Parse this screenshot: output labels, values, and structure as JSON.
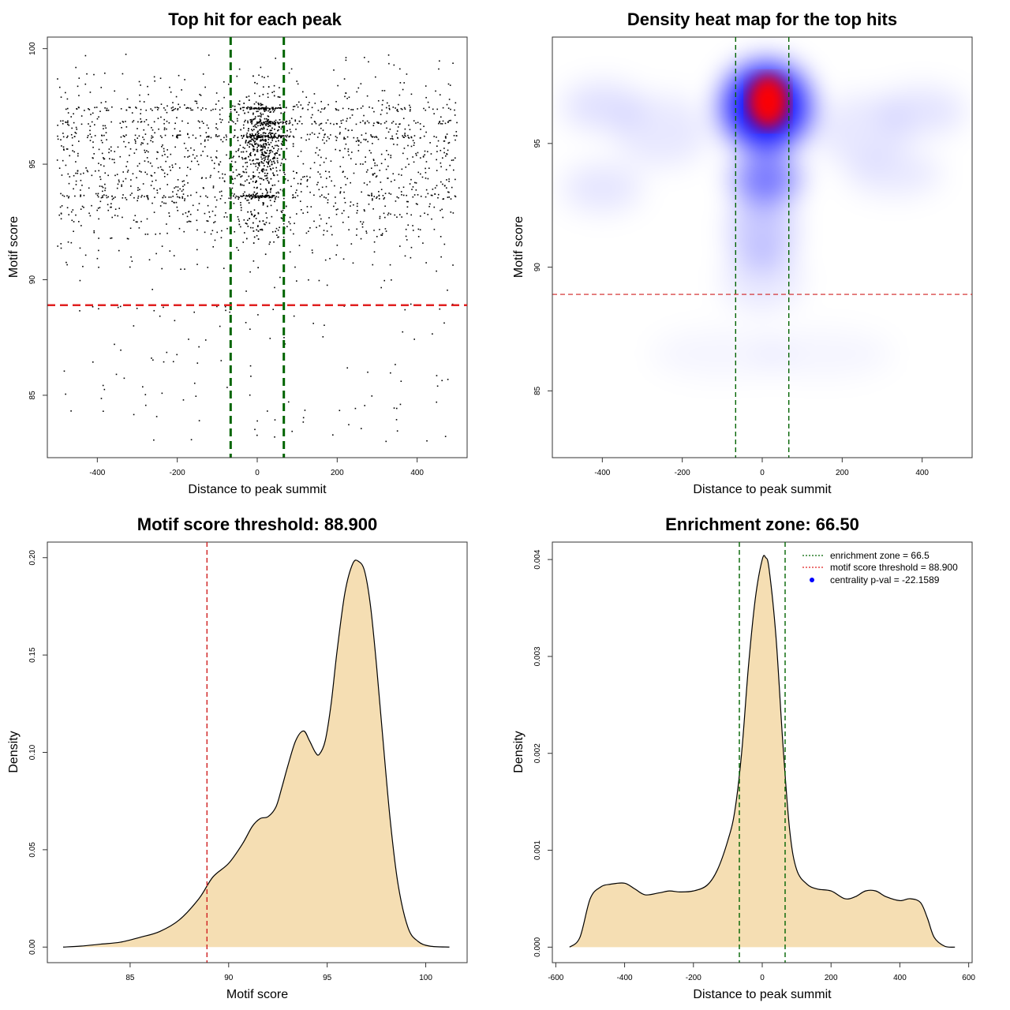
{
  "chart_data": [
    {
      "type": "scatter",
      "title": "Top hit for each peak",
      "xlabel": "Distance to peak summit",
      "ylabel": "Motif score",
      "xlim": [
        -525,
        525
      ],
      "ylim": [
        82.3,
        100.5
      ],
      "xticks": [
        -400,
        -200,
        0,
        200,
        400
      ],
      "yticks": [
        85,
        90,
        95,
        100
      ],
      "vlines": [
        -66.5,
        66.5
      ],
      "hline": 88.9,
      "vline_color": "#006400",
      "hline_color": "#e02020",
      "point_color": "#000000",
      "summary": {
        "n_points_approx": 3000,
        "x_range": [
          -500,
          500
        ],
        "y_range": [
          82.9,
          99.8
        ],
        "central_band": [
          -70,
          70
        ],
        "dense_score_rows": [
          93.6,
          96.2,
          96.8,
          97.4
        ]
      }
    },
    {
      "type": "heatmap",
      "title": "Density heat map for the top hits",
      "xlabel": "Distance to peak summit",
      "ylabel": "Motif score",
      "xlim": [
        -525,
        525
      ],
      "ylim": [
        82.3,
        99.3
      ],
      "xticks": [
        -400,
        -200,
        0,
        200,
        400
      ],
      "yticks": [
        85,
        90,
        95
      ],
      "vlines": [
        -66.5,
        66.5
      ],
      "hline": 88.9,
      "color_scale": [
        "#ffffff",
        "#0000ff",
        "#ff0000"
      ],
      "peak": {
        "x": 15,
        "y": 96.7
      }
    },
    {
      "type": "area",
      "title": "Motif score threshold: 88.900",
      "xlabel": "Motif score",
      "ylabel": "Density",
      "xlim": [
        80.8,
        102.1
      ],
      "ylim": [
        -0.008,
        0.208
      ],
      "xticks": [
        85,
        90,
        95,
        100
      ],
      "yticks": [
        0.0,
        0.05,
        0.1,
        0.15,
        0.2
      ],
      "ytick_labels": [
        "0.00",
        "0.05",
        "0.10",
        "0.15",
        "0.20"
      ],
      "vline": 88.9,
      "fill": "#f5deb3",
      "x": [
        81.6,
        82.5,
        83.5,
        84.5,
        85.5,
        86.5,
        87.5,
        88.5,
        89.2,
        90.0,
        90.7,
        91.2,
        91.6,
        92.0,
        92.4,
        92.7,
        93.0,
        93.4,
        93.8,
        94.1,
        94.4,
        94.6,
        94.9,
        95.2,
        95.5,
        95.9,
        96.3,
        96.6,
        96.9,
        97.2,
        97.5,
        97.8,
        98.2,
        98.6,
        99.1,
        99.6,
        100.2,
        101.2
      ],
      "y": [
        0.0,
        0.0005,
        0.0015,
        0.0025,
        0.005,
        0.008,
        0.014,
        0.025,
        0.036,
        0.043,
        0.053,
        0.062,
        0.066,
        0.067,
        0.072,
        0.082,
        0.093,
        0.106,
        0.111,
        0.106,
        0.1,
        0.099,
        0.106,
        0.125,
        0.152,
        0.182,
        0.197,
        0.198,
        0.193,
        0.175,
        0.145,
        0.11,
        0.065,
        0.032,
        0.01,
        0.003,
        0.0005,
        0.0
      ]
    },
    {
      "type": "area",
      "title": "Enrichment zone: 66.50",
      "xlabel": "Distance to peak summit",
      "ylabel": "Density",
      "xlim": [
        -610,
        610
      ],
      "ylim": [
        -0.00016,
        0.00418
      ],
      "xticks": [
        -600,
        -400,
        -200,
        0,
        200,
        400,
        600
      ],
      "yticks": [
        0.0,
        0.001,
        0.002,
        0.003,
        0.004
      ],
      "ytick_labels": [
        "0.000",
        "0.001",
        "0.002",
        "0.003",
        "0.004"
      ],
      "vlines": [
        -66.5,
        66.5
      ],
      "fill": "#f5deb3",
      "x": [
        -560,
        -530,
        -500,
        -470,
        -440,
        -400,
        -370,
        -340,
        -300,
        -270,
        -240,
        -200,
        -160,
        -130,
        -100,
        -80,
        -60,
        -40,
        -20,
        0,
        10,
        20,
        40,
        60,
        80,
        100,
        130,
        160,
        200,
        240,
        270,
        300,
        330,
        360,
        400,
        430,
        460,
        480,
        500,
        530,
        560
      ],
      "y": [
        0.0,
        0.0001,
        0.0005,
        0.00062,
        0.00065,
        0.00066,
        0.0006,
        0.00054,
        0.00056,
        0.00058,
        0.00057,
        0.00058,
        0.00064,
        0.0008,
        0.0011,
        0.0014,
        0.002,
        0.0029,
        0.0036,
        0.004,
        0.00402,
        0.0039,
        0.0032,
        0.0021,
        0.0012,
        0.0008,
        0.00065,
        0.0006,
        0.00058,
        0.0005,
        0.00052,
        0.00058,
        0.00058,
        0.00052,
        0.00048,
        0.0005,
        0.00046,
        0.0003,
        0.0001,
        1e-05,
        0.0
      ]
    }
  ],
  "legend": {
    "items": [
      {
        "label": "enrichment zone = 66.5",
        "symbol": "dotted-line",
        "color": "#006400"
      },
      {
        "label": "motif score threshold = 88.900",
        "symbol": "dotted-line",
        "color": "#e02020"
      },
      {
        "label": "centrality p-val = -22.1589",
        "symbol": "dot",
        "color": "#0000ff"
      }
    ]
  }
}
